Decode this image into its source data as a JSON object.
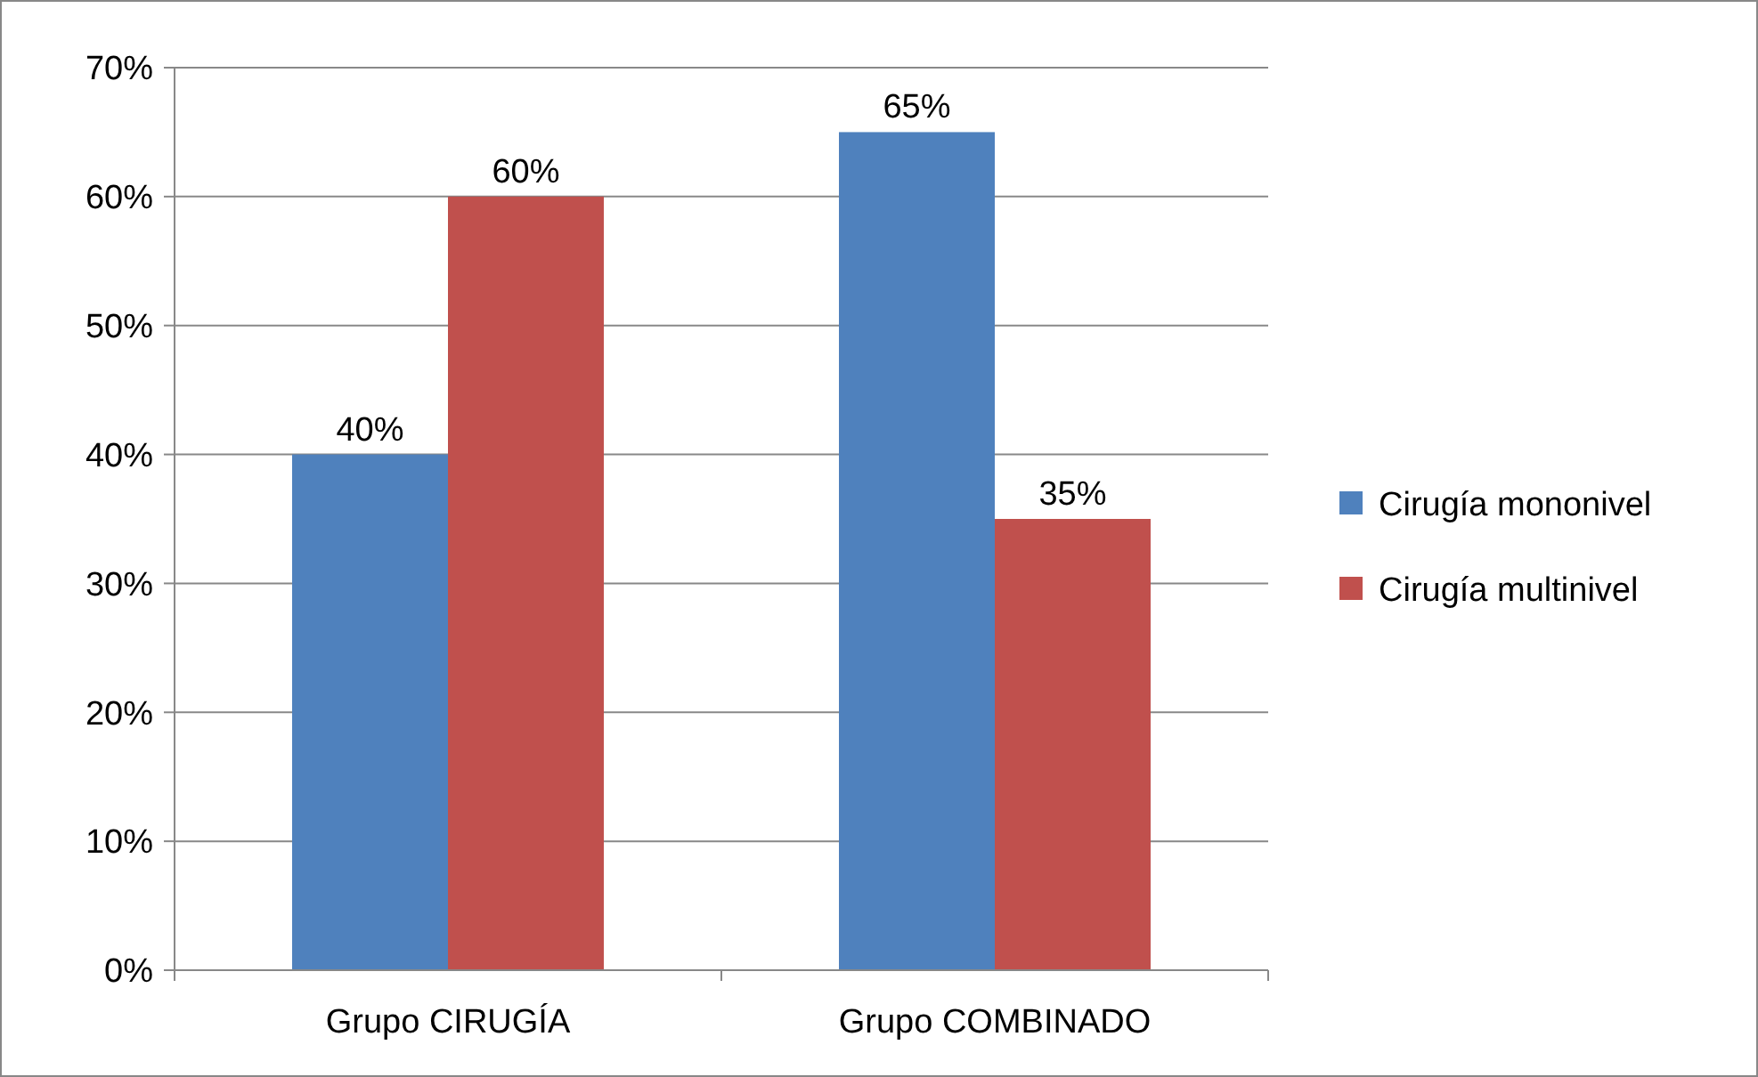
{
  "chart_data": {
    "type": "bar",
    "categories": [
      "Grupo CIRUGÍA",
      "Grupo COMBINADO"
    ],
    "series": [
      {
        "name": "Cirugía mononivel",
        "color": "#4f81bd",
        "values": [
          40,
          65
        ],
        "value_labels": [
          "40%",
          "65%"
        ]
      },
      {
        "name": "Cirugía multinivel",
        "color": "#c0504d",
        "values": [
          60,
          35
        ],
        "value_labels": [
          "60%",
          "35%"
        ]
      }
    ],
    "ylim": [
      0,
      70
    ],
    "yticks": [
      {
        "value": 0,
        "label": "0%"
      },
      {
        "value": 10,
        "label": "10%"
      },
      {
        "value": 20,
        "label": "20%"
      },
      {
        "value": 30,
        "label": "30%"
      },
      {
        "value": 40,
        "label": "40%"
      },
      {
        "value": 50,
        "label": "50%"
      },
      {
        "value": 60,
        "label": "60%"
      },
      {
        "value": 70,
        "label": "70%"
      }
    ],
    "grid": "y",
    "legend": "right"
  }
}
